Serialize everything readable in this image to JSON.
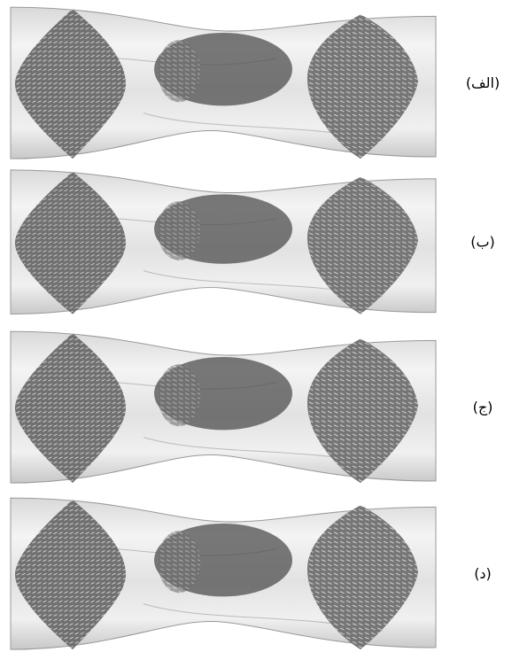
{
  "panels": [
    {
      "label": "(الف)"
    },
    {
      "label": "(ب)"
    },
    {
      "label": "(ج)"
    },
    {
      "label": "(د)"
    }
  ]
}
